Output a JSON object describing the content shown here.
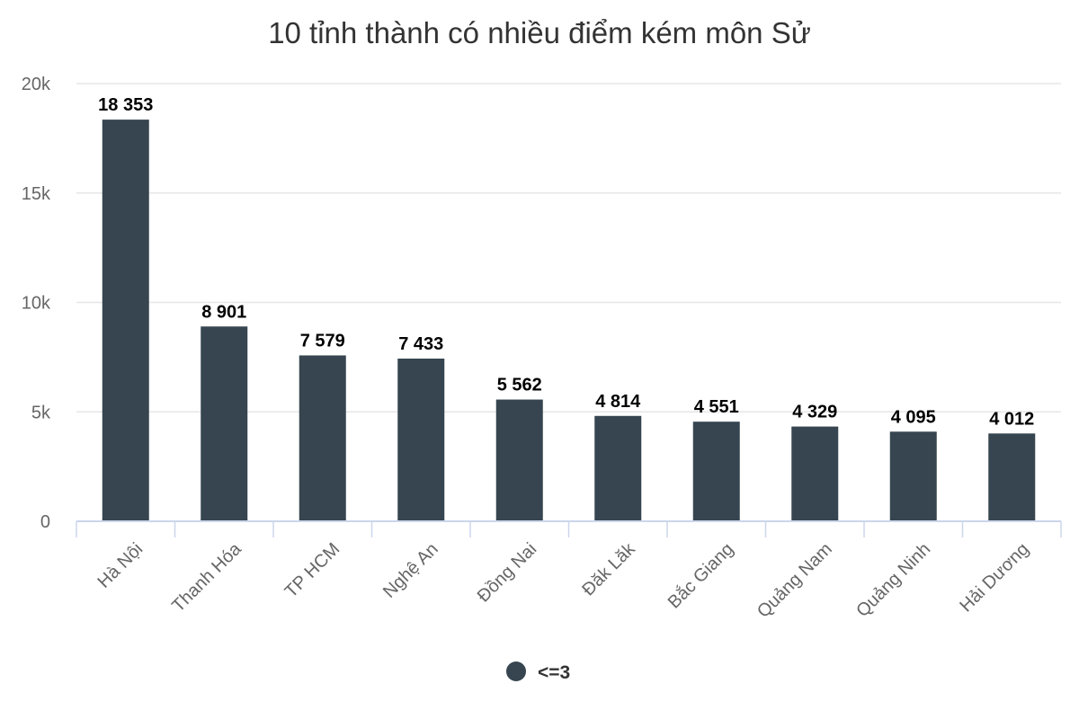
{
  "chart_data": {
    "type": "bar",
    "title": "10 tỉnh thành có nhiều điểm kém môn Sử",
    "categories": [
      "Hà Nội",
      "Thanh Hóa",
      "TP HCM",
      "Nghệ An",
      "Đồng Nai",
      "Đăk Lăk",
      "Bắc Giang",
      "Quảng Nam",
      "Quảng Ninh",
      "Hải Dương"
    ],
    "series": [
      {
        "name": "<=3",
        "values": [
          18353,
          8901,
          7579,
          7433,
          5562,
          4814,
          4551,
          4329,
          4095,
          4012
        ],
        "labels": [
          "18 353",
          "8 901",
          "7 579",
          "7 433",
          "5 562",
          "4 814",
          "4 551",
          "4 329",
          "4 095",
          "4 012"
        ]
      }
    ],
    "ylim": [
      0,
      20000
    ],
    "yticks": [
      0,
      5000,
      10000,
      15000,
      20000
    ],
    "ytick_labels": [
      "0",
      "5k",
      "10k",
      "15k",
      "20k"
    ],
    "grid": true,
    "legend": "bottom-center",
    "bar_color": "#36454f"
  }
}
